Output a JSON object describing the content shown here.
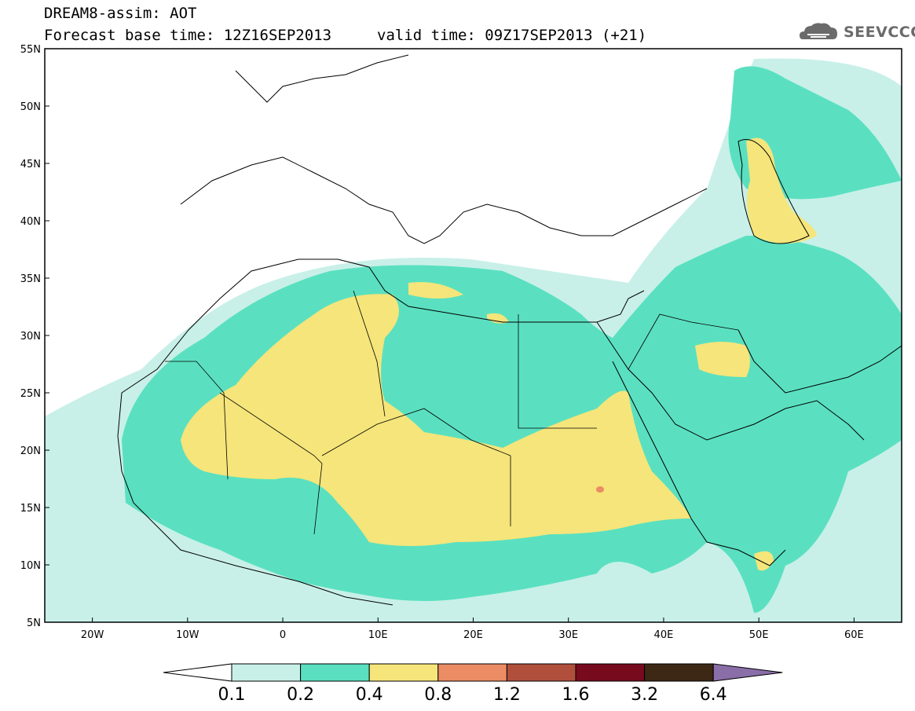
{
  "header": {
    "model_line": "DREAM8-assim: AOT",
    "base_time_line": "Forecast base time: 12Z16SEP2013",
    "valid_time_line": "valid time: 09Z17SEP2013 (+21)",
    "logo_text": "SEEVCCC",
    "logo_icon": "cloud-logo-icon"
  },
  "map": {
    "lon_range": [
      -25,
      65
    ],
    "lat_range": [
      5,
      55
    ],
    "lat_ticks": [
      "55N",
      "50N",
      "45N",
      "40N",
      "35N",
      "30N",
      "25N",
      "20N",
      "15N",
      "10N",
      "5N"
    ],
    "lon_ticks": [
      "20W",
      "10W",
      "0",
      "10E",
      "20E",
      "30E",
      "40E",
      "50E",
      "60E"
    ],
    "lon_tick_values": [
      -20,
      -10,
      0,
      10,
      20,
      30,
      40,
      50,
      60
    ],
    "lat_tick_values": [
      55,
      50,
      45,
      40,
      35,
      30,
      25,
      20,
      15,
      10,
      5
    ]
  },
  "colorbar": {
    "labels": [
      "0.1",
      "0.2",
      "0.4",
      "0.8",
      "1.2",
      "1.6",
      "3.2",
      "6.4"
    ],
    "colors": [
      "#ffffff",
      "#c8f0e8",
      "#5ae0c0",
      "#f5e57a",
      "#eb8c64",
      "#b0503c",
      "#780a1e",
      "#3c2814",
      "#8a6ea8"
    ]
  }
}
